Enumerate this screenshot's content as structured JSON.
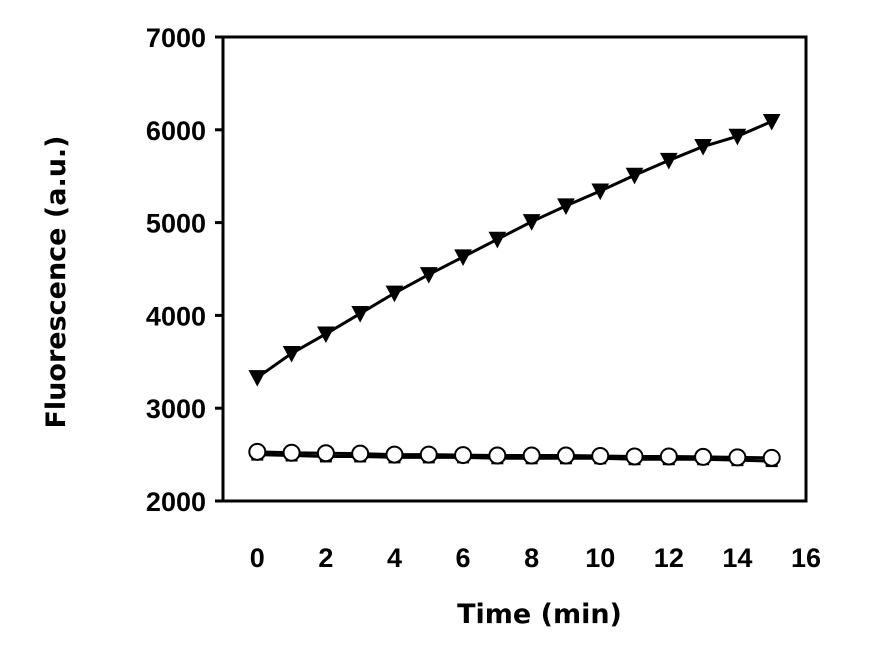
{
  "chart_data": {
    "type": "line",
    "title": "",
    "xlabel": "Time (min)",
    "ylabel": "Fluorescence (a.u.)",
    "xlim": [
      -1,
      16
    ],
    "ylim": [
      2000,
      7000
    ],
    "xticks": [
      0,
      2,
      4,
      6,
      8,
      10,
      12,
      14,
      16
    ],
    "yticks": [
      2000,
      3000,
      4000,
      5000,
      6000,
      7000
    ],
    "xtick_labels": [
      "0",
      "2",
      "4",
      "6",
      "8",
      "10",
      "12",
      "14",
      "16"
    ],
    "ytick_labels": [
      "2000",
      "3000",
      "4000",
      "5000",
      "6000",
      "7000"
    ],
    "grid": false,
    "legend": "none",
    "series": [
      {
        "marker": "triangle-down",
        "color": "#000000",
        "x": [
          0,
          1,
          2,
          3,
          4,
          5,
          6,
          7,
          8,
          9,
          10,
          11,
          12,
          13,
          14,
          15
        ],
        "values": [
          3330,
          3590,
          3800,
          4020,
          4240,
          4440,
          4630,
          4820,
          5010,
          5180,
          5340,
          5510,
          5670,
          5820,
          5930,
          6090
        ]
      },
      {
        "marker": "square",
        "color": "#000000",
        "x": [
          0,
          1,
          2,
          3,
          4,
          5,
          6,
          7,
          8,
          9,
          10,
          11,
          12,
          13,
          14,
          15
        ],
        "values": [
          2500,
          2490,
          2480,
          2480,
          2470,
          2470,
          2470,
          2460,
          2460,
          2460,
          2460,
          2450,
          2450,
          2450,
          2440,
          2430
        ]
      },
      {
        "marker": "circle-open",
        "color": "#000000",
        "x": [
          0,
          1,
          2,
          3,
          4,
          5,
          6,
          7,
          8,
          9,
          10,
          11,
          12,
          13,
          14,
          15
        ],
        "values": [
          2530,
          2520,
          2515,
          2510,
          2500,
          2500,
          2495,
          2490,
          2490,
          2490,
          2485,
          2480,
          2480,
          2475,
          2470,
          2465
        ]
      }
    ]
  }
}
